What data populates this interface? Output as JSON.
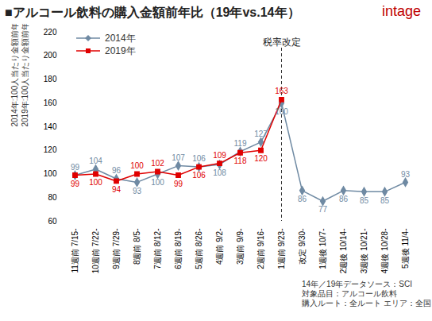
{
  "chart_data": {
    "type": "line",
    "title": "■アルコール飲料の購入金額前年比（19年vs.14年）",
    "logo": "intage",
    "y_label": [
      "2014年:100人当たり金額前年比(%)",
      "2019年:100人当たり金額前年比(%)"
    ],
    "categories": [
      "11週前 7/15-",
      "10週前 7/22-",
      "9週前 7/29-",
      "8週前 8/5-",
      "7週前 8/12-",
      "6週前 8/19-",
      "5週前 8/26-",
      "4週前 9/2-",
      "3週前 9/9-",
      "2週前 9/16-",
      "1週前 9/23-",
      "改定 9/30-",
      "1週後 10/7-",
      "2週後 10/14-",
      "3週後 10/21-",
      "4週後 10/28-",
      "5週後 11/4-"
    ],
    "series": [
      {
        "name": "2014年",
        "color": "#6f8aa3",
        "marker": "diamond",
        "values": [
          99,
          104,
          96,
          93,
          100,
          107,
          106,
          108,
          119,
          127,
          160,
          86,
          77,
          86,
          85,
          85,
          93
        ]
      },
      {
        "name": "2019年",
        "color": "#e00000",
        "marker": "square",
        "values": [
          99,
          100,
          94,
          100,
          102,
          99,
          106,
          109,
          118,
          120,
          163,
          null,
          null,
          null,
          null,
          null,
          null
        ]
      }
    ],
    "ylim": [
      60,
      220
    ],
    "yticks": [
      60,
      80,
      100,
      120,
      140,
      160,
      180,
      200,
      220
    ],
    "grid": false,
    "legend": "top-left",
    "data_labels": true,
    "annotations": [
      {
        "text": "税率改定",
        "x": "1週前 9/23-",
        "line_style": "dashed"
      }
    ],
    "source": [
      "14年／19年データソース：SCI",
      "対象品目：アルコール飲料",
      "購入ルート：全ルート エリア：全国"
    ]
  }
}
